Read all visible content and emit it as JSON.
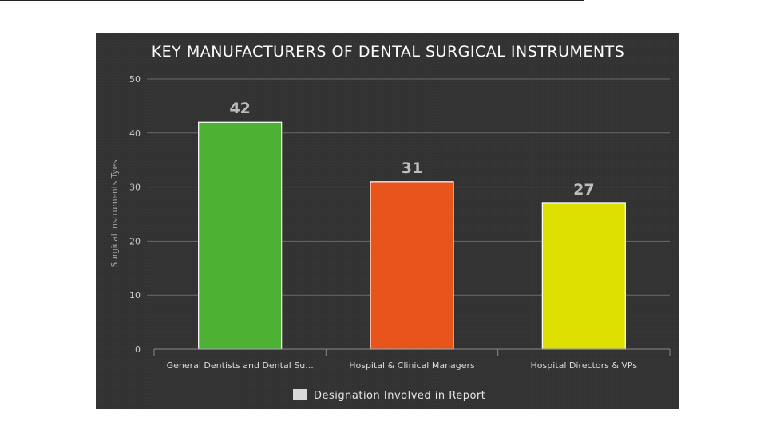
{
  "chart_data": {
    "type": "bar",
    "title": "KEY MANUFACTURERS OF DENTAL SURGICAL INSTRUMENTS",
    "ylabel": "Surgical Instruments Tyes",
    "xlabel": "",
    "categories": [
      "General Dentists and Dental Su...",
      "Hospital & Clinical Managers",
      "Hospital Directors & VPs"
    ],
    "series": [
      {
        "name": "Designation Involved in Report",
        "values": [
          42,
          31,
          27
        ],
        "colors": [
          "#4db234",
          "#e8541b",
          "#dde000"
        ]
      }
    ],
    "ylim": [
      0,
      50
    ],
    "yticks": [
      0,
      10,
      20,
      30,
      40,
      50
    ],
    "grid": true,
    "legend_position": "bottom",
    "legend_color": "#d9d9d9",
    "background": "#333333"
  }
}
